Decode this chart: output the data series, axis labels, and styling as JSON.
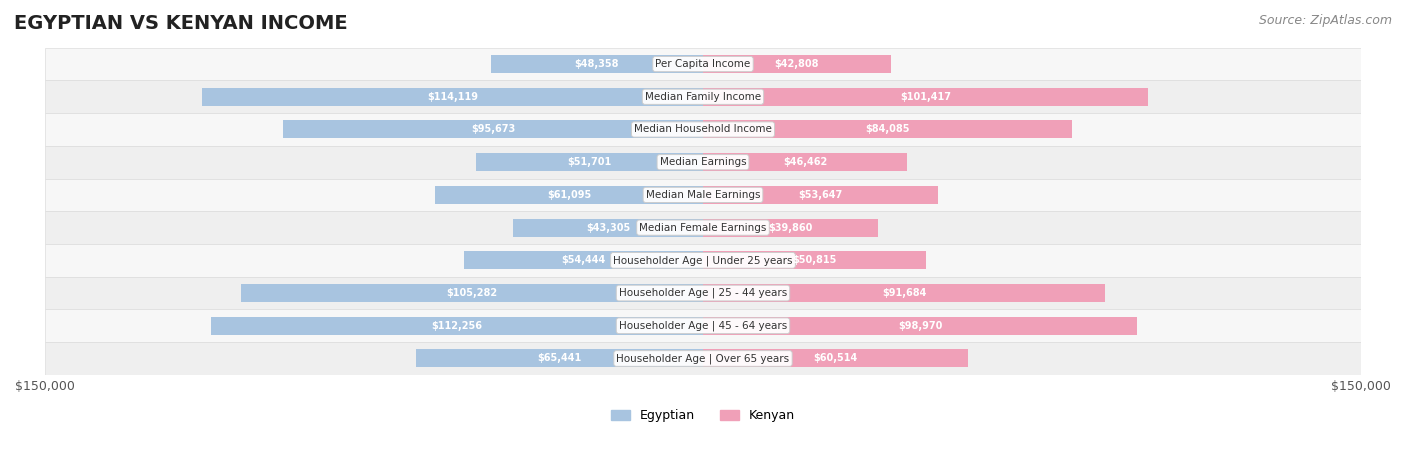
{
  "title": "EGYPTIAN VS KENYAN INCOME",
  "source": "Source: ZipAtlas.com",
  "categories": [
    "Per Capita Income",
    "Median Family Income",
    "Median Household Income",
    "Median Earnings",
    "Median Male Earnings",
    "Median Female Earnings",
    "Householder Age | Under 25 years",
    "Householder Age | 25 - 44 years",
    "Householder Age | 45 - 64 years",
    "Householder Age | Over 65 years"
  ],
  "egyptian_values": [
    48358,
    114119,
    95673,
    51701,
    61095,
    43305,
    54444,
    105282,
    112256,
    65441
  ],
  "kenyan_values": [
    42808,
    101417,
    84085,
    46462,
    53647,
    39860,
    50815,
    91684,
    98970,
    60514
  ],
  "egyptian_labels": [
    "$48,358",
    "$114,119",
    "$95,673",
    "$51,701",
    "$61,095",
    "$43,305",
    "$54,444",
    "$105,282",
    "$112,256",
    "$65,441"
  ],
  "kenyan_labels": [
    "$42,808",
    "$101,417",
    "$84,085",
    "$46,462",
    "$53,647",
    "$39,860",
    "$50,815",
    "$91,684",
    "$98,970",
    "$60,514"
  ],
  "egyptian_color": "#a8c4e0",
  "kenyan_color": "#f0a0b8",
  "egyptian_label_color_inside": "#ffffff",
  "egyptian_label_color_outside": "#888888",
  "kenyan_label_color_inside": "#ffffff",
  "kenyan_label_color_outside": "#888888",
  "max_value": 150000,
  "background_color": "#ffffff",
  "row_bg_color": "#f2f2f2",
  "legend_egyptian": "Egyptian",
  "legend_kenyan": "Kenyan",
  "xlabel_left": "$150,000",
  "xlabel_right": "$150,000",
  "title_fontsize": 14,
  "source_fontsize": 9,
  "bar_height": 0.55,
  "inside_label_threshold": 30000
}
